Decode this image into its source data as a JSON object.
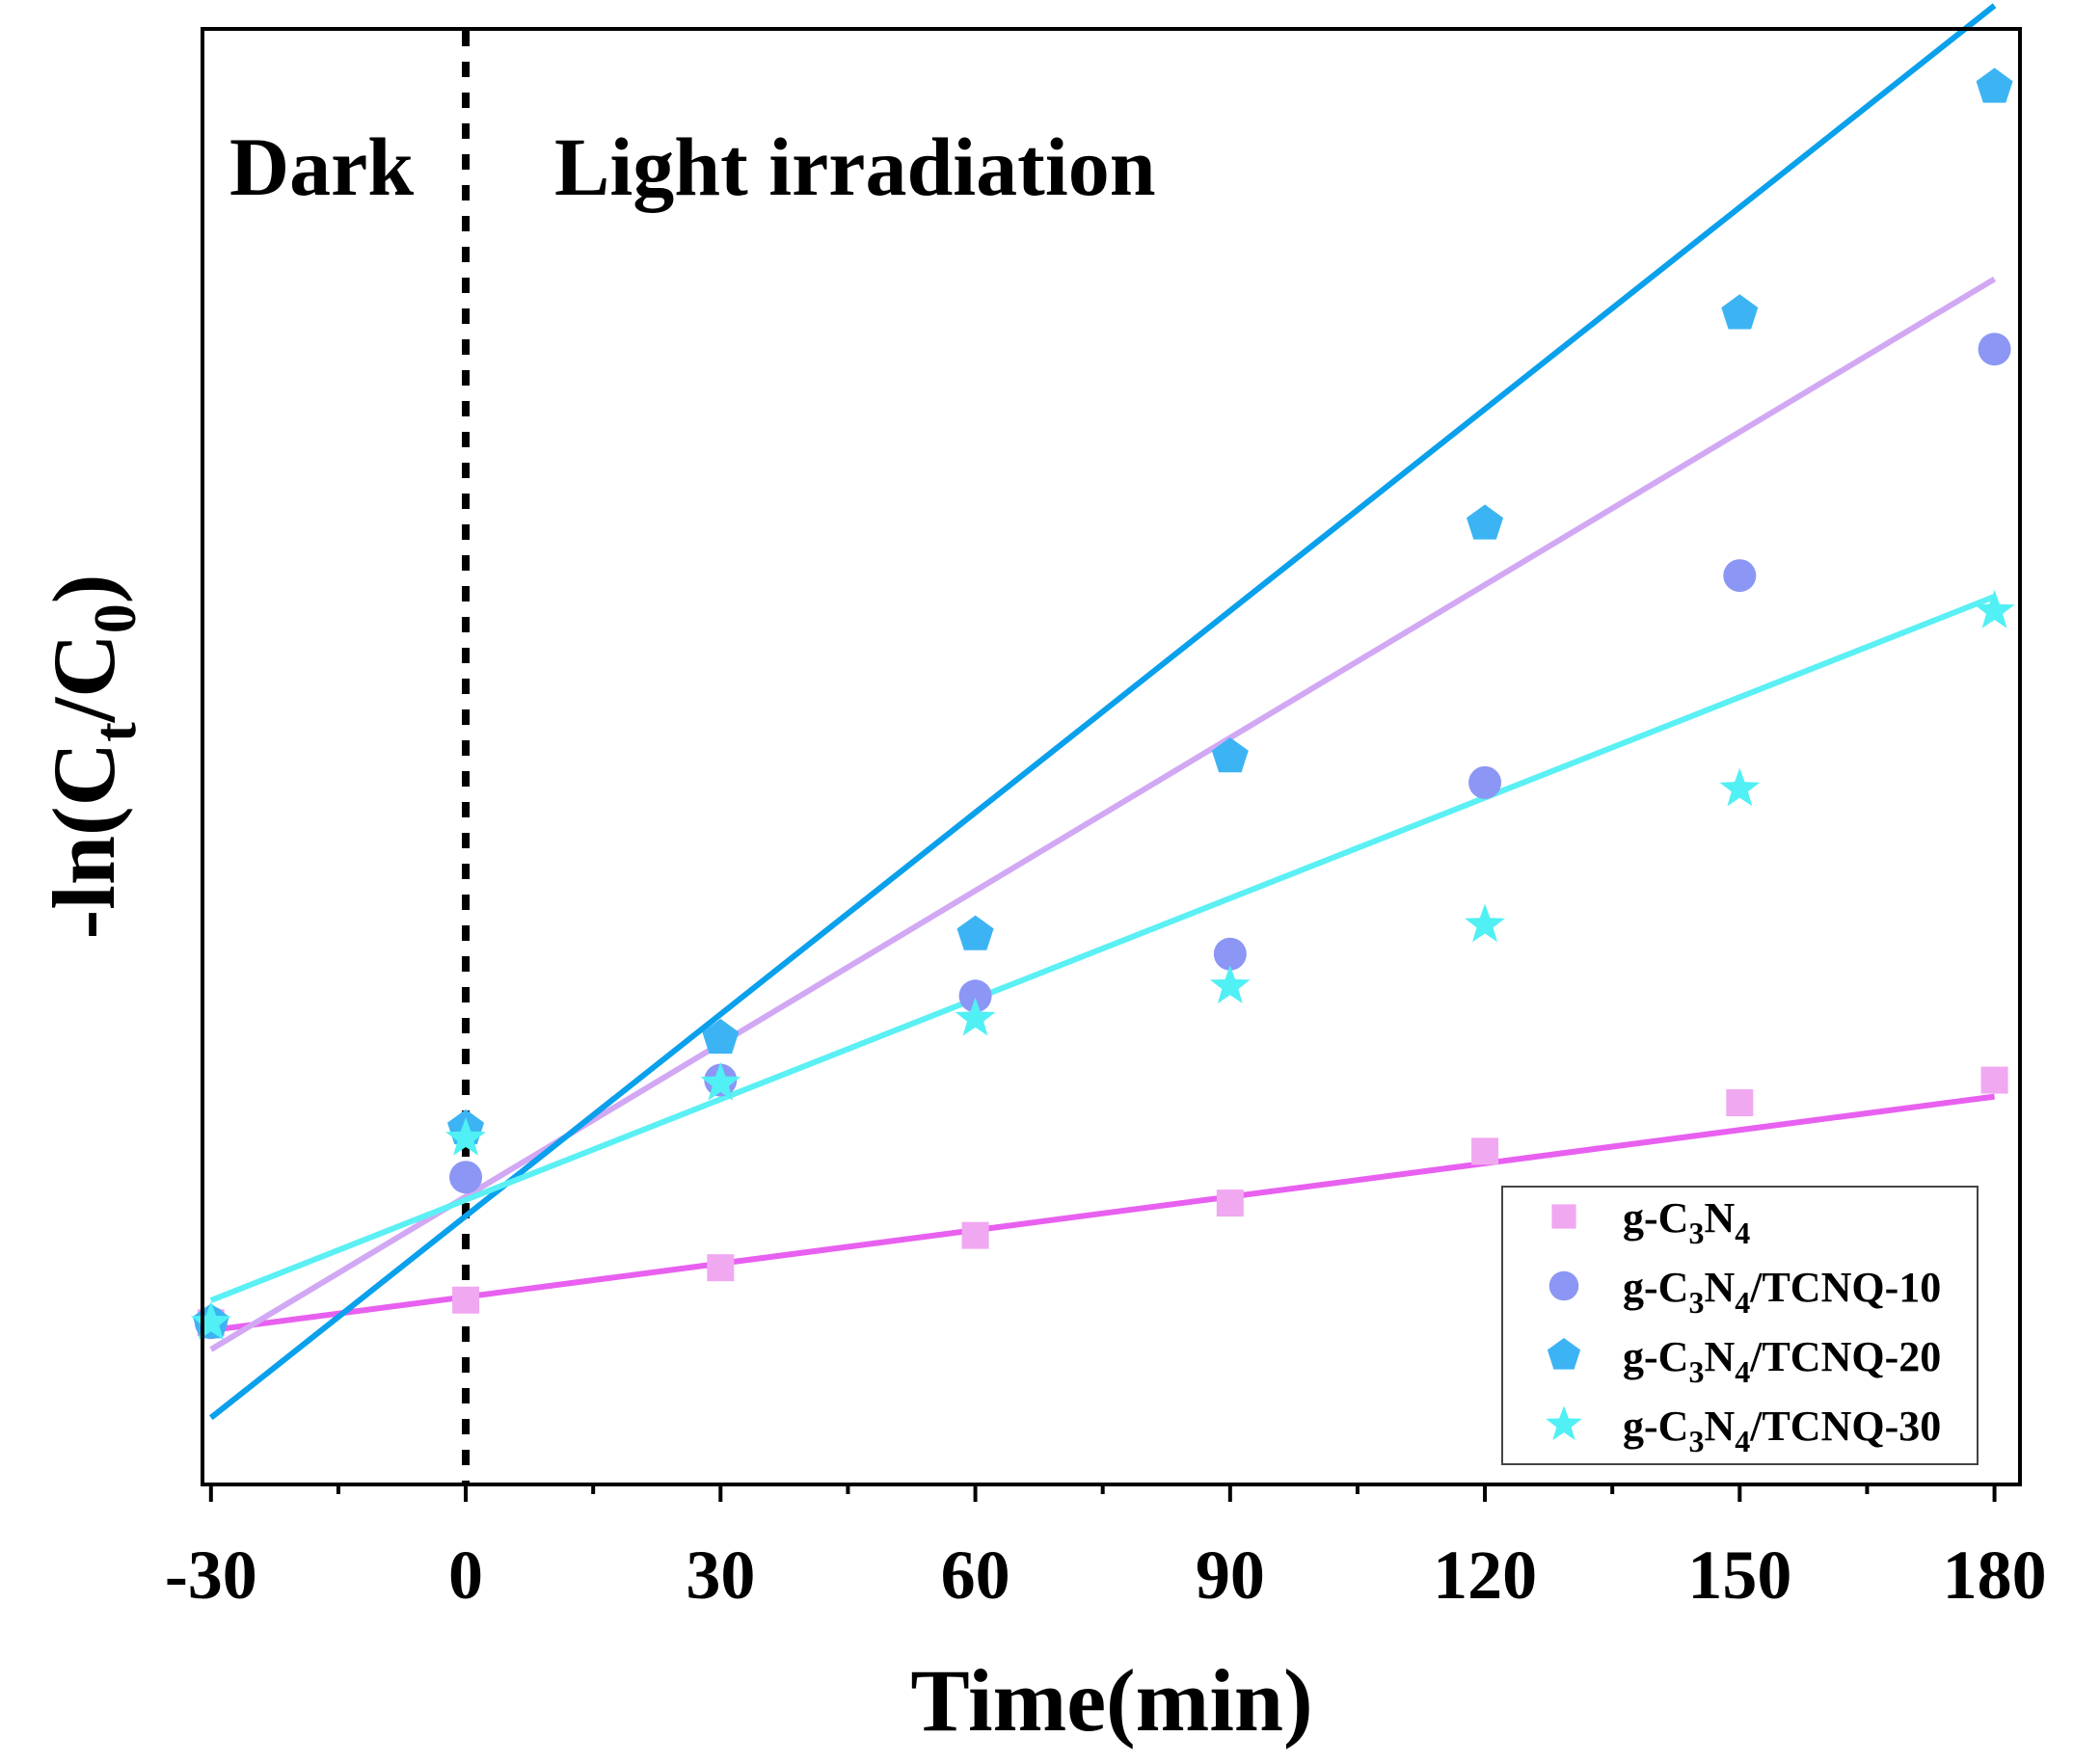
{
  "chart_data": {
    "type": "scatter",
    "title": "",
    "xlabel": "Time(min)",
    "ylabel": "-ln(Ct/C0)",
    "ylabel_parts": {
      "main": "-ln(C",
      "sub_t": "t",
      "mid": "/C",
      "sub_0": "0",
      "close": ")"
    },
    "xlim": [
      -31,
      183
    ],
    "ylim": [
      -0.5,
      4.0
    ],
    "x_ticks": [
      -30,
      0,
      30,
      60,
      90,
      120,
      150,
      180
    ],
    "x_tick_labels": [
      "-30",
      "0",
      "30",
      "60",
      "90",
      "120",
      "150",
      "180"
    ],
    "y_tick_labels_shown": false,
    "x": [
      -30,
      0,
      30,
      60,
      90,
      120,
      150,
      180
    ],
    "regions": {
      "divider_x": 0,
      "left_label": "Dark",
      "right_label": "Light irradiation"
    },
    "legend_position": "bottom-right",
    "series": [
      {
        "name": "g-C3N4",
        "label_parts": {
          "base": "g-C",
          "n3": "3",
          "mid": "N",
          "n4": "4",
          "suffix": ""
        },
        "marker": "square",
        "marker_color": "#f0a8f0",
        "line_color": "#e860f0",
        "values": [
          0,
          0.07,
          0.17,
          0.27,
          0.37,
          0.53,
          0.68,
          0.75
        ],
        "fit": {
          "slope": 0.00344,
          "intercept": 0.08
        }
      },
      {
        "name": "g-C3N4/TCNQ-10",
        "label_parts": {
          "base": "g-C",
          "n3": "3",
          "mid": "N",
          "n4": "4",
          "suffix": "/TCNQ-10"
        },
        "marker": "circle",
        "marker_color": "#8c96f4",
        "line_color": "#d2a8f4",
        "values": [
          0,
          0.45,
          0.75,
          1.01,
          1.14,
          1.67,
          2.31,
          3.01
        ],
        "fit": {
          "slope": 0.01576,
          "intercept": 0.39
        }
      },
      {
        "name": "g-C3N4/TCNQ-20",
        "label_parts": {
          "base": "g-C",
          "n3": "3",
          "mid": "N",
          "n4": "4",
          "suffix": "/TCNQ-20"
        },
        "marker": "pentagon",
        "marker_color": "#3cb4f4",
        "line_color": "#0aa0ec",
        "values": [
          0,
          0.6,
          0.88,
          1.2,
          1.75,
          2.47,
          3.12,
          3.82
        ],
        "fit": {
          "slope": 0.02079,
          "intercept": 0.33
        }
      },
      {
        "name": "g-C3N4/TCNQ-30",
        "label_parts": {
          "base": "g-C",
          "n3": "3",
          "mid": "N",
          "n4": "4",
          "suffix": "/TCNQ-30"
        },
        "marker": "star",
        "marker_color": "#50f0f4",
        "line_color": "#5af0f4",
        "values": [
          0,
          0.57,
          0.74,
          0.94,
          1.04,
          1.23,
          1.65,
          2.2
        ],
        "fit": {
          "slope": 0.01036,
          "intercept": 0.38
        }
      }
    ]
  }
}
